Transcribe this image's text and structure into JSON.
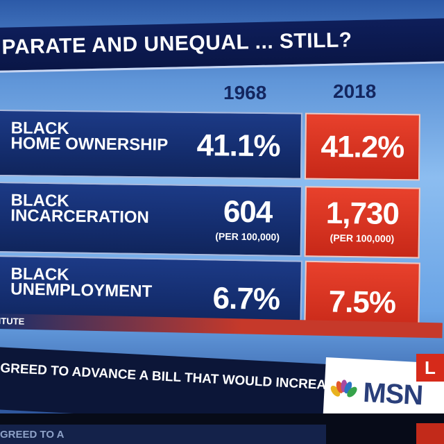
{
  "title": "PARATE AND UNEQUAL ... STILL?",
  "years": {
    "left": "1968",
    "right": "2018"
  },
  "rows": [
    {
      "label": "BLACK\nHOME OWNERSHIP",
      "v1968": "41.1%",
      "v1968_sub": "",
      "v2018": "41.2%",
      "v2018_sub": ""
    },
    {
      "label": "BLACK\nINCARCERATION",
      "v1968": "604",
      "v1968_sub": "(PER 100,000)",
      "v2018": "1,730",
      "v2018_sub": "(PER 100,000)"
    },
    {
      "label": "BLACK\nUNEMPLOYMENT",
      "v1968": "6.7%",
      "v1968_sub": "",
      "v2018": "7.5%",
      "v2018_sub": ""
    }
  ],
  "source_fragment": "ITUTE",
  "ticker": "GREED TO ADVANCE A BILL THAT WOULD INCREA",
  "network_logo": "MSN",
  "live_tag": "L",
  "bottom_ticker": "GREED TO A",
  "colors": {
    "navy": "#10255c",
    "red": "#c72818",
    "sky": "#8cbdf0"
  }
}
